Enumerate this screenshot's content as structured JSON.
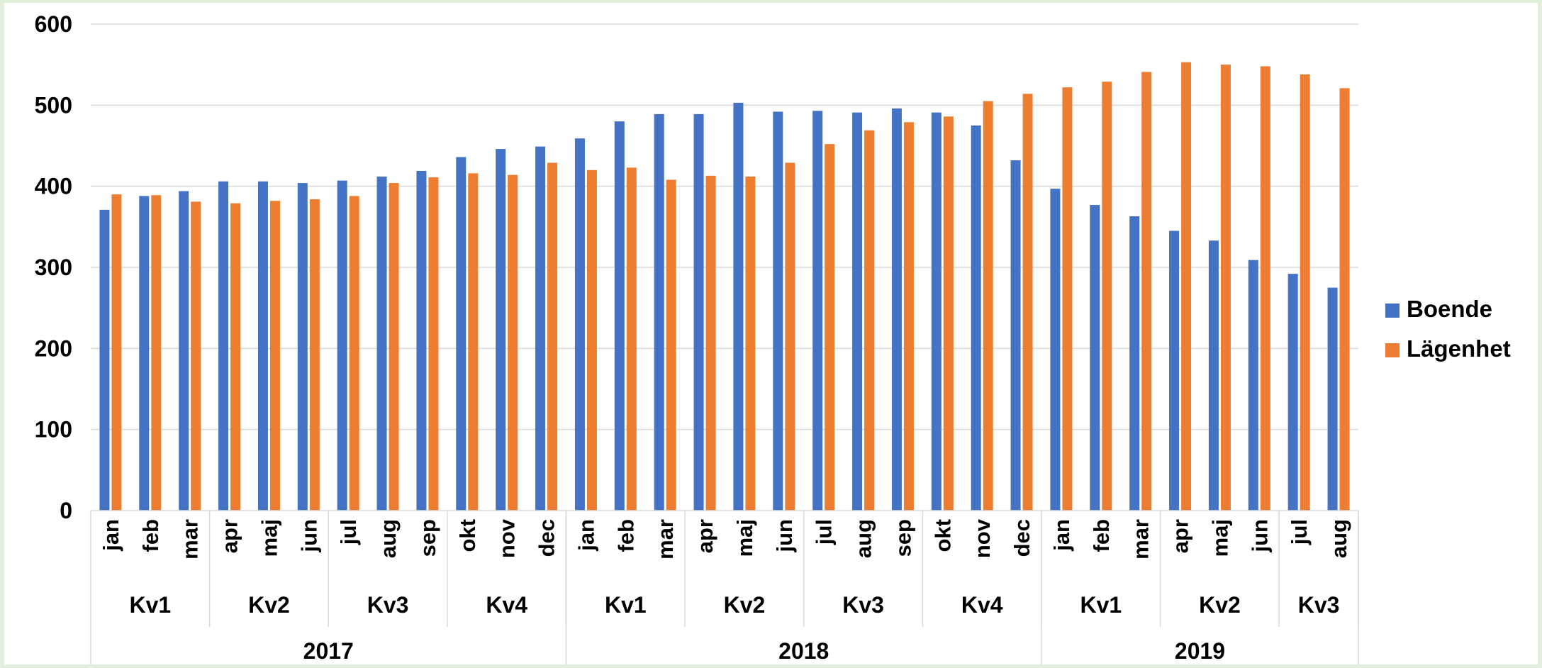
{
  "chart_data": {
    "type": "bar",
    "title": "",
    "xlabel": "",
    "ylabel": "",
    "ylim": [
      0,
      600
    ],
    "yticks": [
      0,
      100,
      200,
      300,
      400,
      500,
      600
    ],
    "grid": true,
    "legend_position": "right",
    "categories": [
      "jan",
      "feb",
      "mar",
      "apr",
      "maj",
      "jun",
      "jul",
      "aug",
      "sep",
      "okt",
      "nov",
      "dec",
      "jan",
      "feb",
      "mar",
      "apr",
      "maj",
      "jun",
      "jul",
      "aug",
      "sep",
      "okt",
      "nov",
      "dec",
      "jan",
      "feb",
      "mar",
      "apr",
      "maj",
      "jun",
      "jul",
      "aug"
    ],
    "quarters": [
      {
        "label": "Kv1",
        "span": 3
      },
      {
        "label": "Kv2",
        "span": 3
      },
      {
        "label": "Kv3",
        "span": 3
      },
      {
        "label": "Kv4",
        "span": 3
      },
      {
        "label": "Kv1",
        "span": 3
      },
      {
        "label": "Kv2",
        "span": 3
      },
      {
        "label": "Kv3",
        "span": 3
      },
      {
        "label": "Kv4",
        "span": 3
      },
      {
        "label": "Kv1",
        "span": 3
      },
      {
        "label": "Kv2",
        "span": 3
      },
      {
        "label": "Kv3",
        "span": 2
      }
    ],
    "years": [
      {
        "label": "2017",
        "span": 12
      },
      {
        "label": "2018",
        "span": 12
      },
      {
        "label": "2019",
        "span": 8
      }
    ],
    "series": [
      {
        "name": "Boende",
        "color": "#4472c4",
        "values": [
          371,
          388,
          394,
          406,
          406,
          404,
          407,
          412,
          419,
          436,
          446,
          449,
          459,
          480,
          489,
          489,
          503,
          492,
          493,
          491,
          496,
          491,
          475,
          432,
          397,
          377,
          363,
          345,
          333,
          309,
          292,
          275
        ]
      },
      {
        "name": "Lägenhet",
        "color": "#ed7d31",
        "values": [
          390,
          389,
          381,
          379,
          382,
          384,
          388,
          404,
          411,
          416,
          414,
          429,
          420,
          423,
          408,
          413,
          412,
          429,
          452,
          469,
          479,
          486,
          505,
          514,
          522,
          529,
          541,
          553,
          550,
          548,
          538,
          521
        ]
      }
    ]
  }
}
